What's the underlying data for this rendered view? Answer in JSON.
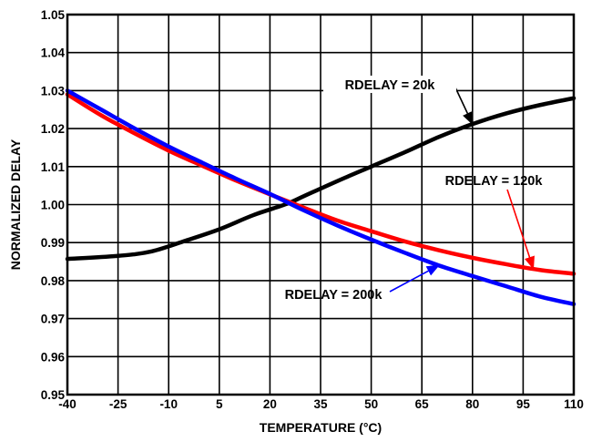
{
  "chart_data": {
    "type": "line",
    "title": "",
    "xlabel": "TEMPERATURE (°C)",
    "ylabel": "NORMALIZED DELAY",
    "xlim": [
      -40,
      110
    ],
    "ylim": [
      0.95,
      1.05
    ],
    "x_ticks": [
      -40,
      -25,
      -10,
      5,
      20,
      35,
      50,
      65,
      80,
      95,
      110
    ],
    "x_tick_labels": [
      "-40",
      "-25",
      "-10",
      "5",
      "20",
      "35",
      "50",
      "65",
      "80",
      "95",
      "110"
    ],
    "y_ticks": [
      0.95,
      0.96,
      0.97,
      0.98,
      0.99,
      1.0,
      1.01,
      1.02,
      1.03,
      1.04,
      1.05
    ],
    "y_tick_labels": [
      "0.95",
      "0.96",
      "0.97",
      "0.98",
      "0.99",
      "1.00",
      "1.01",
      "1.02",
      "1.03",
      "1.04",
      "1.05"
    ],
    "grid": true,
    "series": [
      {
        "name": "RDELAY = 20k",
        "color": "#000000",
        "x": [
          -40,
          -25,
          -15,
          -5,
          5,
          15,
          25,
          30,
          40,
          50,
          60,
          70,
          80,
          90,
          100,
          110
        ],
        "y": [
          0.9857,
          0.9865,
          0.9877,
          0.9905,
          0.9935,
          0.9972,
          1.0002,
          1.0022,
          1.0062,
          1.01,
          1.0138,
          1.0178,
          1.0212,
          1.024,
          1.0262,
          1.028
        ]
      },
      {
        "name": "RDELAY = 120k",
        "color": "#ff0000",
        "x": [
          -40,
          -30,
          -20,
          -10,
          0,
          10,
          20,
          30,
          40,
          50,
          60,
          70,
          80,
          90,
          100,
          110
        ],
        "y": [
          1.029,
          1.0235,
          1.0187,
          1.0142,
          1.0102,
          1.0063,
          1.0027,
          0.9992,
          0.9958,
          0.993,
          0.9903,
          0.988,
          0.986,
          0.9843,
          0.9828,
          0.9818
        ]
      },
      {
        "name": "RDELAY = 200k",
        "color": "#0000ff",
        "x": [
          -40,
          -30,
          -20,
          -10,
          0,
          10,
          20,
          30,
          40,
          50,
          60,
          70,
          80,
          90,
          100,
          110
        ],
        "y": [
          1.03,
          1.025,
          1.02,
          1.0153,
          1.011,
          1.0068,
          1.0028,
          0.9985,
          0.9945,
          0.9908,
          0.9873,
          0.984,
          0.9812,
          0.9785,
          0.9758,
          0.9738
        ]
      }
    ],
    "annotations": [
      {
        "text": "RDELAY = 20k",
        "series": 0,
        "arrow_to": [
          80,
          1.0212
        ]
      },
      {
        "text": "RDELAY = 120k",
        "series": 1,
        "arrow_to": [
          98,
          0.9832
        ]
      },
      {
        "text": "RDELAY = 200k",
        "series": 2,
        "arrow_to": [
          70,
          0.984
        ]
      }
    ]
  }
}
